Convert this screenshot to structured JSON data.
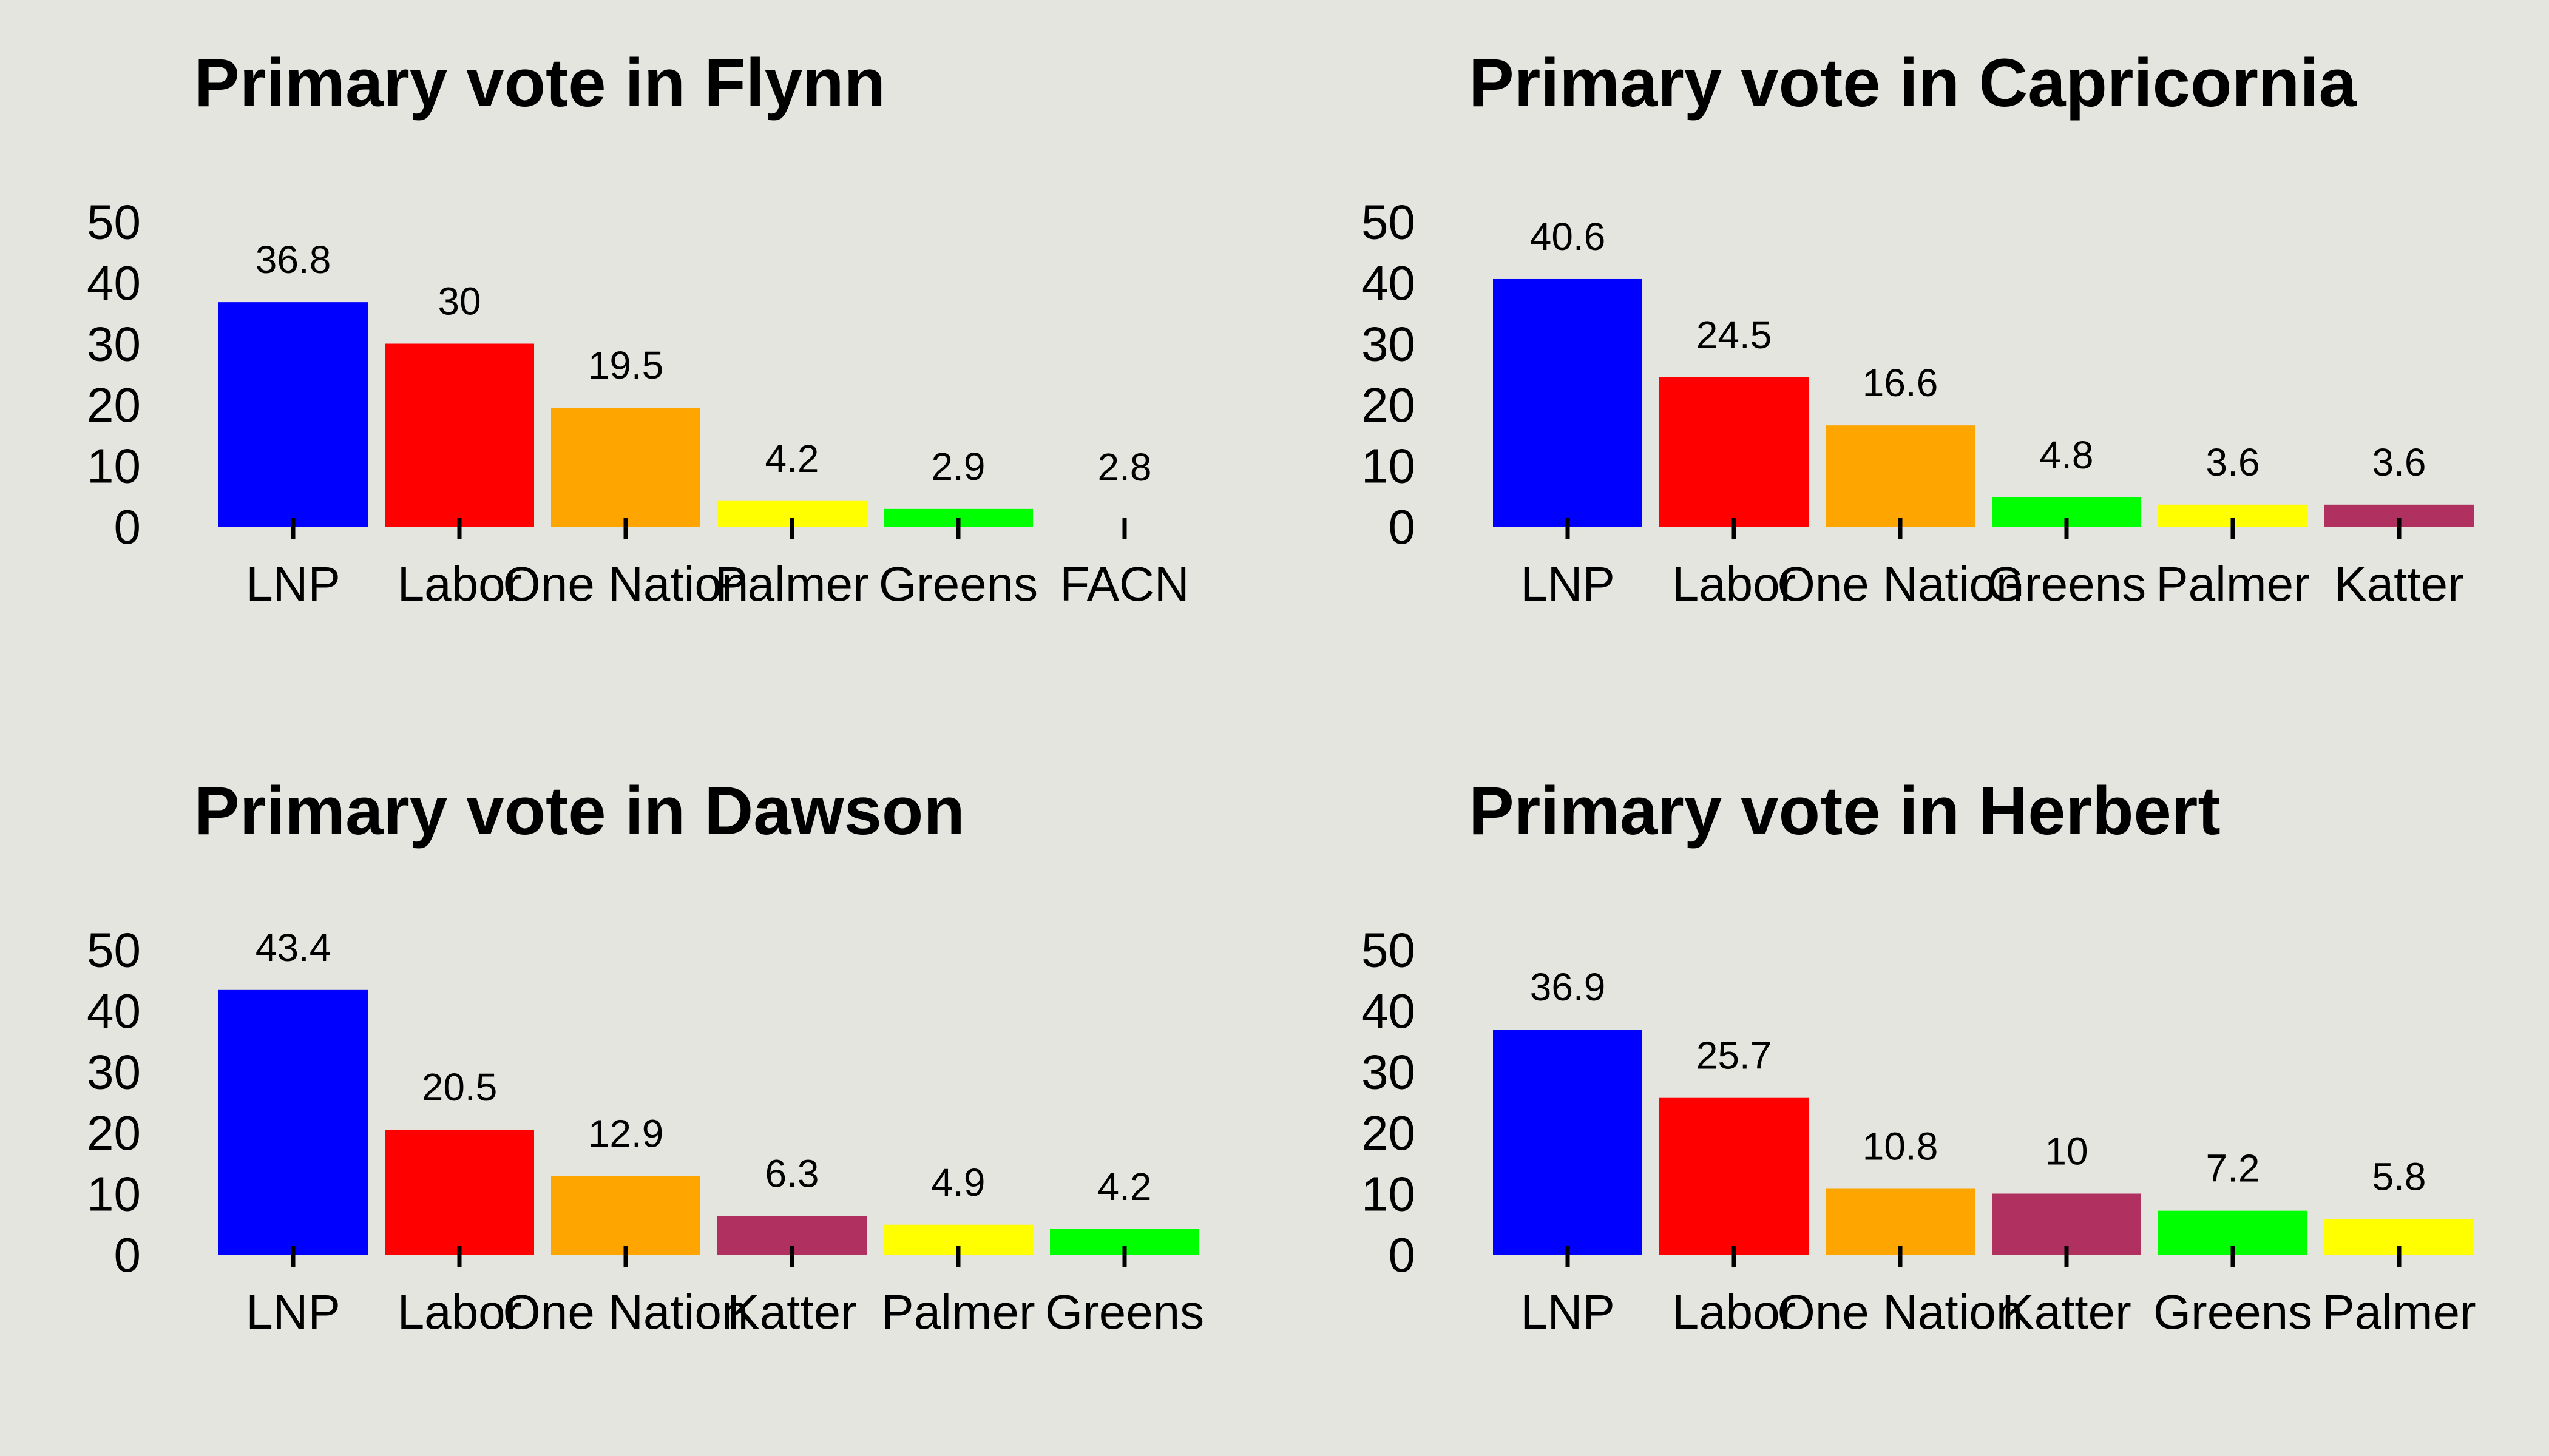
{
  "chart_data": [
    {
      "type": "bar",
      "title": "Primary vote in Flynn",
      "categories": [
        "LNP",
        "Labor",
        "One Nation",
        "Palmer",
        "Greens",
        "FACN"
      ],
      "values": [
        36.8,
        30,
        19.5,
        4.2,
        2.9,
        2.8
      ],
      "value_labels": [
        "36.8",
        "30",
        "19.5",
        "4.2",
        "2.9",
        "2.8"
      ],
      "colors": [
        "#0000ff",
        "#ff0000",
        "#ffa500",
        "#ffff00",
        "#00ff00",
        "none"
      ],
      "yticks": [
        "0",
        "10",
        "20",
        "30",
        "40",
        "50"
      ],
      "ylim": [
        0,
        50
      ],
      "grid": false
    },
    {
      "type": "bar",
      "title": "Primary vote in Capricornia",
      "categories": [
        "LNP",
        "Labor",
        "One Nation",
        "Greens",
        "Palmer",
        "Katter"
      ],
      "values": [
        40.6,
        24.5,
        16.6,
        4.8,
        3.6,
        3.6
      ],
      "value_labels": [
        "40.6",
        "24.5",
        "16.6",
        "4.8",
        "3.6",
        "3.6"
      ],
      "colors": [
        "#0000ff",
        "#ff0000",
        "#ffa500",
        "#00ff00",
        "#ffff00",
        "#b03060"
      ],
      "yticks": [
        "0",
        "10",
        "20",
        "30",
        "40",
        "50"
      ],
      "ylim": [
        0,
        50
      ],
      "grid": false
    },
    {
      "type": "bar",
      "title": "Primary vote in Dawson",
      "categories": [
        "LNP",
        "Labor",
        "One Nation",
        "Katter",
        "Palmer",
        "Greens"
      ],
      "values": [
        43.4,
        20.5,
        12.9,
        6.3,
        4.9,
        4.2
      ],
      "value_labels": [
        "43.4",
        "20.5",
        "12.9",
        "6.3",
        "4.9",
        "4.2"
      ],
      "colors": [
        "#0000ff",
        "#ff0000",
        "#ffa500",
        "#b03060",
        "#ffff00",
        "#00ff00"
      ],
      "yticks": [
        "0",
        "10",
        "20",
        "30",
        "40",
        "50"
      ],
      "ylim": [
        0,
        50
      ],
      "grid": false
    },
    {
      "type": "bar",
      "title": "Primary vote in Herbert",
      "categories": [
        "LNP",
        "Labor",
        "One Nation",
        "Katter",
        "Greens",
        "Palmer"
      ],
      "values": [
        36.9,
        25.7,
        10.8,
        10,
        7.2,
        5.8
      ],
      "value_labels": [
        "36.9",
        "25.7",
        "10.8",
        "10",
        "7.2",
        "5.8"
      ],
      "colors": [
        "#0000ff",
        "#ff0000",
        "#ffa500",
        "#b03060",
        "#00ff00",
        "#ffff00"
      ],
      "yticks": [
        "0",
        "10",
        "20",
        "30",
        "40",
        "50"
      ],
      "ylim": [
        0,
        50
      ],
      "grid": false
    }
  ]
}
